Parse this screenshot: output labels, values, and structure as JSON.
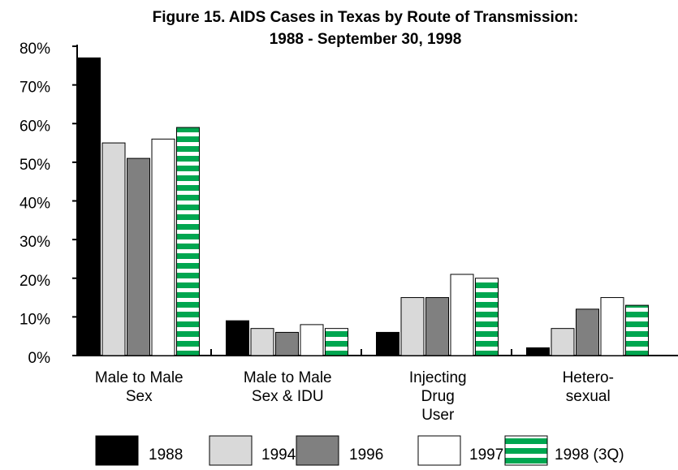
{
  "chart_data": {
    "type": "bar",
    "title": "Figure 15. AIDS Cases in Texas by Route of Transmission:\n1988 - September 30, 1998",
    "categories": [
      "Male to Male\nSex",
      "Male to Male\nSex & IDU",
      "Injecting\nDrug\nUser",
      "Hetero-\nsexual"
    ],
    "series": [
      {
        "name": "1988",
        "color": "#000000",
        "values": [
          77,
          9,
          6,
          2
        ]
      },
      {
        "name": "1994",
        "color": "#d9d9d9",
        "values": [
          55,
          7,
          15,
          7
        ]
      },
      {
        "name": "1996",
        "color": "#808080",
        "values": [
          51,
          6,
          15,
          12
        ]
      },
      {
        "name": "1997",
        "color": "#ffffff",
        "values": [
          56,
          8,
          21,
          15
        ]
      },
      {
        "name": "1998 (3Q)",
        "color": "#00a650",
        "pattern": "horizontal-stripes",
        "values": [
          59,
          7,
          20,
          13
        ]
      }
    ],
    "ylim": [
      0,
      80
    ],
    "yticks": [
      {
        "value": 0,
        "label": "0%"
      },
      {
        "value": 10,
        "label": "10%"
      },
      {
        "value": 20,
        "label": "20%"
      },
      {
        "value": 30,
        "label": "30%"
      },
      {
        "value": 40,
        "label": "40%"
      },
      {
        "value": 50,
        "label": "50%"
      },
      {
        "value": 60,
        "label": "60%"
      },
      {
        "value": 70,
        "label": "70%"
      },
      {
        "value": 80,
        "label": "80%"
      }
    ],
    "legend": "bottom"
  }
}
